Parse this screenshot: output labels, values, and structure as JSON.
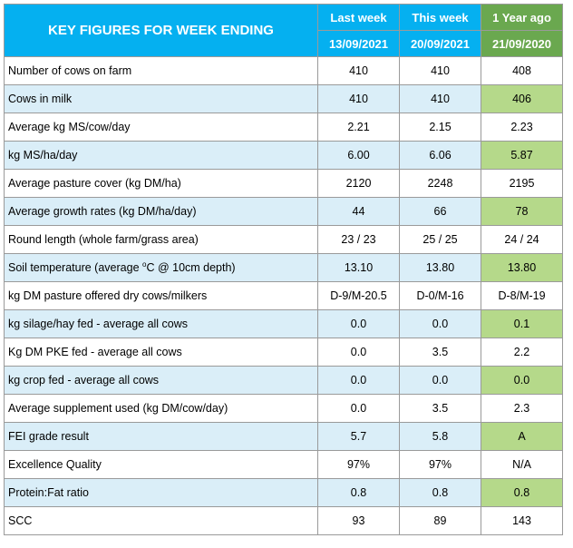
{
  "header": {
    "title": "KEY FIGURES FOR WEEK ENDING",
    "columns": [
      "Last week",
      "This week",
      "1 Year ago"
    ],
    "dates": [
      "13/09/2021",
      "20/09/2021",
      "21/09/2020"
    ]
  },
  "rows": [
    {
      "label": "Number of cows on farm",
      "values": [
        "410",
        "410",
        "408"
      ]
    },
    {
      "label": "Cows in milk",
      "values": [
        "410",
        "410",
        "406"
      ]
    },
    {
      "label": "Average kg MS/cow/day",
      "values": [
        "2.21",
        "2.15",
        "2.23"
      ]
    },
    {
      "label": "kg MS/ha/day",
      "values": [
        "6.00",
        "6.06",
        "5.87"
      ]
    },
    {
      "label": "Average pasture cover (kg DM/ha)",
      "values": [
        "2120",
        "2248",
        "2195"
      ]
    },
    {
      "label": "Average growth rates (kg DM/ha/day)",
      "values": [
        "44",
        "66",
        "78"
      ]
    },
    {
      "label": "Round length (whole farm/grass area)",
      "values": [
        "23 / 23",
        "25 / 25",
        "24 / 24"
      ]
    },
    {
      "label_pre": "Soil temperature (average ",
      "label_sup": "o",
      "label_post": "C  @ 10cm depth)",
      "values": [
        "13.10",
        "13.80",
        "13.80"
      ]
    },
    {
      "label": "kg DM pasture offered dry cows/milkers",
      "values": [
        "D-9/M-20.5",
        "D-0/M-16",
        "D-8/M-19"
      ]
    },
    {
      "label": "kg silage/hay fed - average all cows",
      "values": [
        "0.0",
        "0.0",
        "0.1"
      ]
    },
    {
      "label": "Kg DM PKE fed - average all cows",
      "values": [
        "0.0",
        "3.5",
        "2.2"
      ]
    },
    {
      "label": "kg crop fed - average all cows",
      "values": [
        "0.0",
        "0.0",
        "0.0"
      ]
    },
    {
      "label": "Average supplement used (kg DM/cow/day)",
      "values": [
        "0.0",
        "3.5",
        "2.3"
      ]
    },
    {
      "label": "FEI grade result",
      "values": [
        "5.7",
        "5.8",
        "A"
      ]
    },
    {
      "label": "Excellence Quality",
      "values": [
        "97%",
        "97%",
        "N/A"
      ]
    },
    {
      "label": "Protein:Fat ratio",
      "values": [
        "0.8",
        "0.8",
        "0.8"
      ]
    },
    {
      "label": "SCC",
      "values": [
        "93",
        "89",
        "143"
      ]
    }
  ],
  "colors": {
    "header_blue": "#05b0f0",
    "header_green": "#6aa84f",
    "row_shade_blue": "#daeef8",
    "row_shade_green": "#b5d98a"
  }
}
